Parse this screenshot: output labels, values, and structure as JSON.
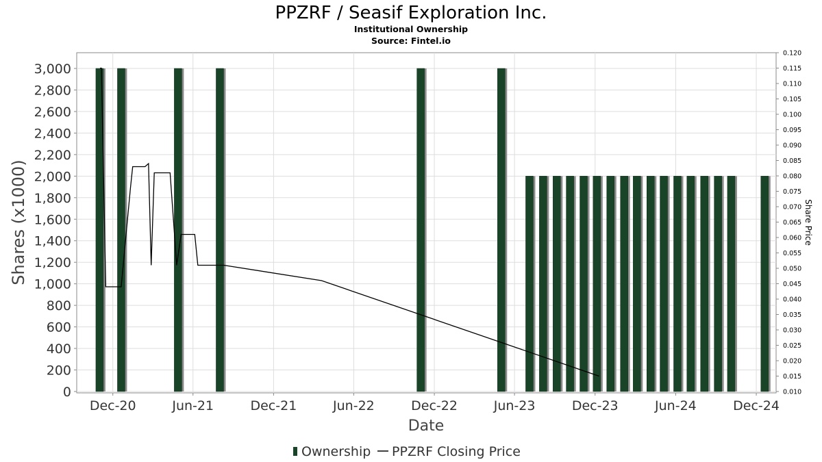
{
  "chart_data": {
    "type": "bar",
    "title": "PPZRF / Seasif Exploration Inc.",
    "subtitle": "Institutional Ownership",
    "source": "Source: Fintel.io",
    "xlabel": "Date",
    "ylabel": "Shares (x1000)",
    "y2label": "Share Price",
    "ylim": [
      0,
      3000
    ],
    "y2lim": [
      0.01,
      0.12
    ],
    "x_range": [
      "2020-09-10",
      "2025-01-15"
    ],
    "grid": true,
    "legend_position": "bottom",
    "colors": {
      "bar": "#1a4428",
      "bar_shadow": "#8a8a8a",
      "line": "#000000",
      "grid": "#dddddd",
      "text": "#333333"
    },
    "x_ticks": [
      {
        "date": "2020-12-01",
        "label": "Dec-20"
      },
      {
        "date": "2021-06-01",
        "label": "Jun-21"
      },
      {
        "date": "2021-12-01",
        "label": "Dec-21"
      },
      {
        "date": "2022-06-01",
        "label": "Jun-22"
      },
      {
        "date": "2022-12-01",
        "label": "Dec-22"
      },
      {
        "date": "2023-06-01",
        "label": "Jun-23"
      },
      {
        "date": "2023-12-01",
        "label": "Dec-23"
      },
      {
        "date": "2024-06-01",
        "label": "Jun-24"
      },
      {
        "date": "2024-12-01",
        "label": "Dec-24"
      }
    ],
    "y_ticks": [
      "0",
      "200",
      "400",
      "600",
      "800",
      "1,000",
      "1,200",
      "1,400",
      "1,600",
      "1,800",
      "2,000",
      "2,200",
      "2,400",
      "2,600",
      "2,800",
      "3,000"
    ],
    "y2_ticks": [
      "0.010",
      "0.015",
      "0.020",
      "0.025",
      "0.030",
      "0.035",
      "0.040",
      "0.045",
      "0.050",
      "0.055",
      "0.060",
      "0.065",
      "0.070",
      "0.075",
      "0.080",
      "0.085",
      "0.090",
      "0.095",
      "0.100",
      "0.105",
      "0.110",
      "0.115",
      "0.120"
    ],
    "series": [
      {
        "name": "Ownership",
        "type": "bar",
        "points": [
          {
            "date": "2020-11-01",
            "value": 3000
          },
          {
            "date": "2020-12-20",
            "value": 3000
          },
          {
            "date": "2021-04-28",
            "value": 3000
          },
          {
            "date": "2021-08-01",
            "value": 3000
          },
          {
            "date": "2022-10-31",
            "value": 3000
          },
          {
            "date": "2023-05-02",
            "value": 3000
          },
          {
            "date": "2023-07-05",
            "value": 2000
          },
          {
            "date": "2023-08-05",
            "value": 2000
          },
          {
            "date": "2023-09-05",
            "value": 2000
          },
          {
            "date": "2023-10-05",
            "value": 2000
          },
          {
            "date": "2023-11-05",
            "value": 2000
          },
          {
            "date": "2023-12-05",
            "value": 2000
          },
          {
            "date": "2024-01-05",
            "value": 2000
          },
          {
            "date": "2024-02-05",
            "value": 2000
          },
          {
            "date": "2024-03-05",
            "value": 2000
          },
          {
            "date": "2024-04-05",
            "value": 2000
          },
          {
            "date": "2024-05-05",
            "value": 2000
          },
          {
            "date": "2024-06-05",
            "value": 2000
          },
          {
            "date": "2024-07-05",
            "value": 2000
          },
          {
            "date": "2024-08-05",
            "value": 2000
          },
          {
            "date": "2024-09-05",
            "value": 2000
          },
          {
            "date": "2024-10-05",
            "value": 2000
          },
          {
            "date": "2024-12-20",
            "value": 2000
          }
        ]
      },
      {
        "name": "PPZRF Closing Price",
        "type": "line",
        "points": [
          {
            "date": "2020-11-02",
            "value": 0.115
          },
          {
            "date": "2020-11-05",
            "value": 0.115
          },
          {
            "date": "2020-11-15",
            "value": 0.044
          },
          {
            "date": "2020-12-20",
            "value": 0.044
          },
          {
            "date": "2021-01-10",
            "value": 0.076
          },
          {
            "date": "2021-01-15",
            "value": 0.083
          },
          {
            "date": "2021-02-12",
            "value": 0.083
          },
          {
            "date": "2021-02-20",
            "value": 0.084
          },
          {
            "date": "2021-02-26",
            "value": 0.051
          },
          {
            "date": "2021-03-05",
            "value": 0.081
          },
          {
            "date": "2021-04-10",
            "value": 0.081
          },
          {
            "date": "2021-04-25",
            "value": 0.051
          },
          {
            "date": "2021-05-05",
            "value": 0.061
          },
          {
            "date": "2021-06-05",
            "value": 0.061
          },
          {
            "date": "2021-06-12",
            "value": 0.051
          },
          {
            "date": "2021-08-10",
            "value": 0.051
          },
          {
            "date": "2022-03-20",
            "value": 0.046
          },
          {
            "date": "2023-12-10",
            "value": 0.015
          }
        ]
      }
    ]
  },
  "legend": {
    "items": [
      {
        "label": "Ownership",
        "color": "#1a4428",
        "icon": "bar-swatch"
      },
      {
        "label": "PPZRF Closing Price",
        "color": "#000000",
        "icon": "line-swatch"
      }
    ]
  }
}
